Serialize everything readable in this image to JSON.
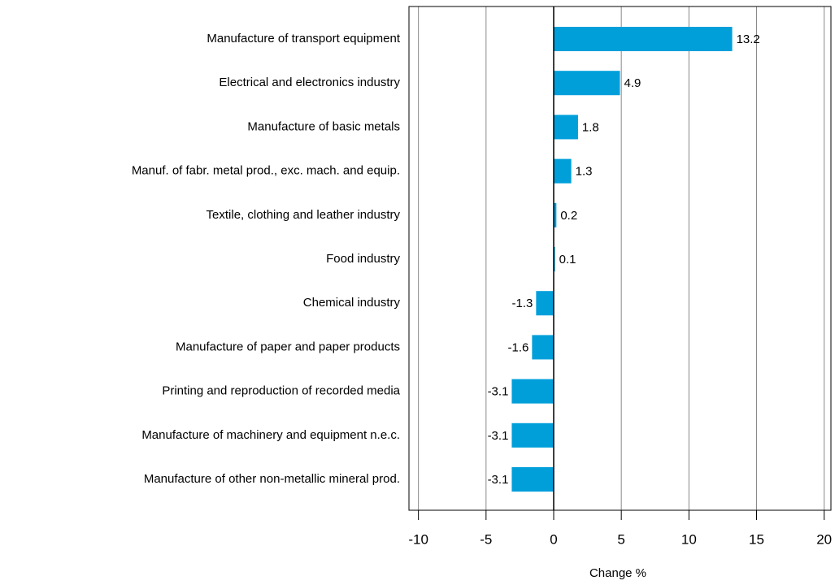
{
  "chart_data": {
    "type": "bar",
    "orientation": "horizontal",
    "categories": [
      "Manufacture of transport equipment",
      "Electrical and electronics industry",
      "Manufacture of basic metals",
      "Manuf. of fabr. metal prod., exc. mach. and equip.",
      "Textile, clothing and leather industry",
      "Food industry",
      "Chemical industry",
      "Manufacture of paper and paper products",
      "Printing and reproduction of recorded media",
      "Manufacture of machinery and equipment n.e.c.",
      "Manufacture of other non-metallic mineral prod."
    ],
    "values": [
      13.2,
      4.9,
      1.8,
      1.3,
      0.2,
      0.1,
      -1.3,
      -1.6,
      -3.1,
      -3.1,
      -3.1
    ],
    "color": "#009fda",
    "xlim": [
      -10.7,
      20.5
    ],
    "xticks": [
      -10,
      -5,
      0,
      5,
      10,
      15,
      20
    ],
    "xlabel": "Change %",
    "grid": true
  }
}
